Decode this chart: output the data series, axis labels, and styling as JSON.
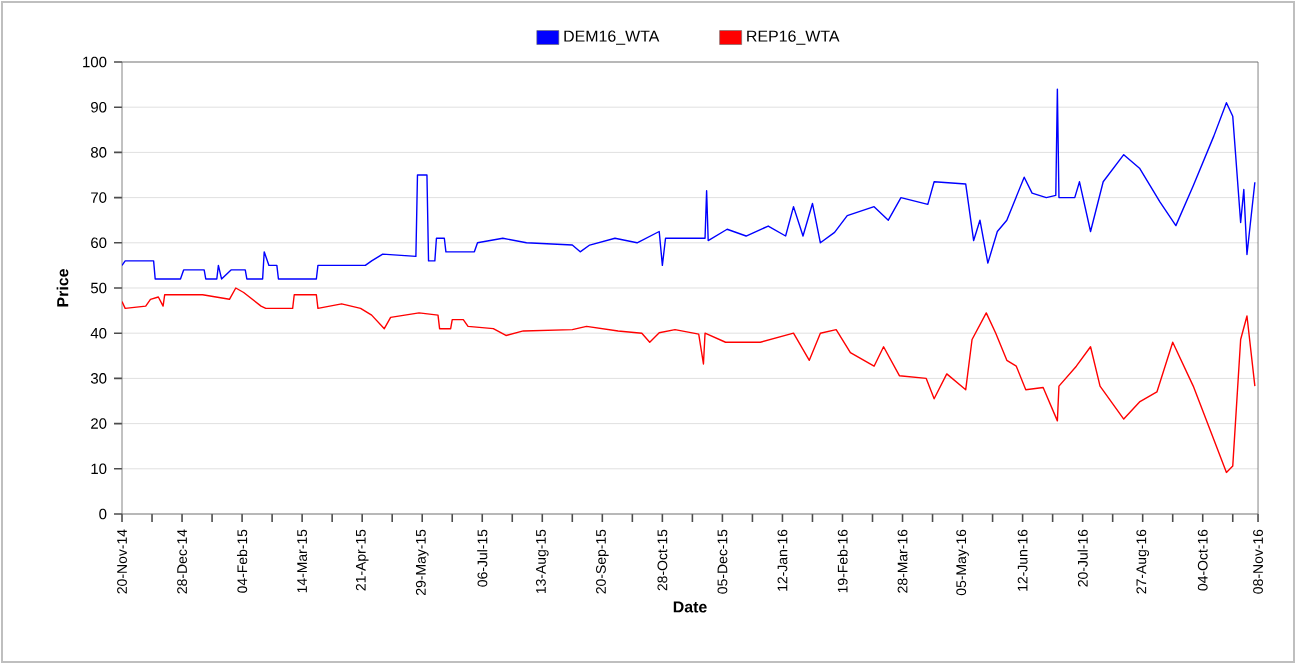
{
  "chart_data": {
    "type": "line",
    "xlabel": "Date",
    "ylabel": "Price",
    "legend": "top",
    "grid": "y",
    "marker": "none",
    "line_style": "solid",
    "xlim": [
      "2014-11-20",
      "2016-11-08"
    ],
    "ylim": [
      0,
      100
    ],
    "yticks": [
      0,
      10,
      20,
      30,
      40,
      50,
      60,
      70,
      80,
      90,
      100
    ],
    "xticks": [
      {
        "value": "2014-11-20",
        "label": "20-Nov-14"
      },
      {
        "value": "2014-12-09",
        "label": null
      },
      {
        "value": "2014-12-28",
        "label": "28-Dec-14"
      },
      {
        "value": "2015-01-16",
        "label": null
      },
      {
        "value": "2015-02-04",
        "label": "04-Feb-15"
      },
      {
        "value": "2015-02-23",
        "label": null
      },
      {
        "value": "2015-03-14",
        "label": "14-Mar-15"
      },
      {
        "value": "2015-04-02",
        "label": null
      },
      {
        "value": "2015-04-21",
        "label": "21-Apr-15"
      },
      {
        "value": "2015-05-10",
        "label": null
      },
      {
        "value": "2015-05-29",
        "label": "29-May-15"
      },
      {
        "value": "2015-06-17",
        "label": null
      },
      {
        "value": "2015-07-06",
        "label": "06-Jul-15"
      },
      {
        "value": "2015-07-25",
        "label": null
      },
      {
        "value": "2015-08-13",
        "label": "13-Aug-15"
      },
      {
        "value": "2015-09-01",
        "label": null
      },
      {
        "value": "2015-09-20",
        "label": "20-Sep-15"
      },
      {
        "value": "2015-10-09",
        "label": null
      },
      {
        "value": "2015-10-28",
        "label": "28-Oct-15"
      },
      {
        "value": "2015-11-16",
        "label": null
      },
      {
        "value": "2015-12-05",
        "label": "05-Dec-15"
      },
      {
        "value": "2015-12-24",
        "label": null
      },
      {
        "value": "2016-01-12",
        "label": "12-Jan-16"
      },
      {
        "value": "2016-01-31",
        "label": null
      },
      {
        "value": "2016-02-19",
        "label": "19-Feb-16"
      },
      {
        "value": "2016-03-09",
        "label": null
      },
      {
        "value": "2016-03-28",
        "label": "28-Mar-16"
      },
      {
        "value": "2016-04-16",
        "label": null
      },
      {
        "value": "2016-05-05",
        "label": "05-May-16"
      },
      {
        "value": "2016-05-24",
        "label": null
      },
      {
        "value": "2016-06-12",
        "label": "12-Jun-16"
      },
      {
        "value": "2016-07-01",
        "label": null
      },
      {
        "value": "2016-07-20",
        "label": "20-Jul-16"
      },
      {
        "value": "2016-08-08",
        "label": null
      },
      {
        "value": "2016-08-27",
        "label": "27-Aug-16"
      },
      {
        "value": "2016-09-15",
        "label": null
      },
      {
        "value": "2016-10-04",
        "label": "04-Oct-16"
      },
      {
        "value": "2016-10-23",
        "label": null
      },
      {
        "value": "2016-11-08",
        "label": "08-Nov-16"
      }
    ],
    "series": [
      {
        "name": "DEM16_WTA",
        "color": "#0000ff",
        "x": [
          "2014-11-20",
          "2014-11-22",
          "2014-12-10",
          "2014-12-11",
          "2014-12-27",
          "2014-12-29",
          "2015-01-11",
          "2015-01-12",
          "2015-01-19",
          "2015-01-20",
          "2015-01-22",
          "2015-01-28",
          "2015-02-06",
          "2015-02-07",
          "2015-02-17",
          "2015-02-18",
          "2015-02-21",
          "2015-02-26",
          "2015-02-27",
          "2015-03-23",
          "2015-03-24",
          "2015-04-23",
          "2015-04-27",
          "2015-05-04",
          "2015-05-25",
          "2015-05-26",
          "2015-06-01",
          "2015-06-02",
          "2015-06-06",
          "2015-06-07",
          "2015-06-12",
          "2015-06-13",
          "2015-07-01",
          "2015-07-03",
          "2015-07-19",
          "2015-08-03",
          "2015-09-01",
          "2015-09-06",
          "2015-09-12",
          "2015-09-28",
          "2015-10-12",
          "2015-10-26",
          "2015-10-28",
          "2015-10-30",
          "2015-11-24",
          "2015-11-25",
          "2015-11-26",
          "2015-12-08",
          "2015-12-20",
          "2016-01-03",
          "2016-01-14",
          "2016-01-19",
          "2016-01-25",
          "2016-01-31",
          "2016-02-05",
          "2016-02-14",
          "2016-02-22",
          "2016-03-10",
          "2016-03-19",
          "2016-03-27",
          "2016-04-13",
          "2016-04-17",
          "2016-05-07",
          "2016-05-12",
          "2016-05-16",
          "2016-05-21",
          "2016-05-27",
          "2016-06-02",
          "2016-06-13",
          "2016-06-18",
          "2016-06-27",
          "2016-07-03",
          "2016-07-04",
          "2016-07-05",
          "2016-07-15",
          "2016-07-18",
          "2016-07-25",
          "2016-08-02",
          "2016-08-15",
          "2016-08-25",
          "2016-09-07",
          "2016-09-17",
          "2016-09-28",
          "2016-10-11",
          "2016-10-19",
          "2016-10-23",
          "2016-10-28",
          "2016-10-30",
          "2016-11-01",
          "2016-11-06"
        ],
        "values": [
          55,
          56,
          56,
          52,
          52,
          54,
          54,
          52,
          52,
          55,
          52,
          54,
          54,
          52,
          52,
          58,
          55,
          55,
          52,
          52,
          55,
          55,
          56,
          57.5,
          57,
          75,
          75,
          56,
          56,
          61,
          61,
          58,
          58,
          60,
          61,
          60,
          59.5,
          58,
          59.5,
          61,
          60,
          62.5,
          55,
          61,
          61,
          71.5,
          60.5,
          63,
          61.5,
          63.7,
          61.5,
          68,
          61.5,
          68.7,
          60,
          62.3,
          66,
          68,
          65,
          70,
          68.5,
          73.5,
          73,
          60.5,
          65,
          55.5,
          62.5,
          65,
          74.5,
          71,
          70,
          70.5,
          94,
          70,
          70,
          73.5,
          62.5,
          73.5,
          79.5,
          76.5,
          69,
          63.8,
          72.6,
          83.6,
          91,
          88,
          64.5,
          71.8,
          57.4,
          73.4
        ]
      },
      {
        "name": "REP16_WTA",
        "color": "#ff0000",
        "x": [
          "2014-11-20",
          "2014-11-22",
          "2014-12-05",
          "2014-12-08",
          "2014-12-13",
          "2014-12-16",
          "2014-12-17",
          "2015-01-10",
          "2015-01-27",
          "2015-01-31",
          "2015-02-05",
          "2015-02-16",
          "2015-02-19",
          "2015-03-08",
          "2015-03-09",
          "2015-03-23",
          "2015-03-24",
          "2015-04-08",
          "2015-04-20",
          "2015-04-27",
          "2015-05-05",
          "2015-05-09",
          "2015-05-27",
          "2015-06-08",
          "2015-06-09",
          "2015-06-16",
          "2015-06-17",
          "2015-06-24",
          "2015-06-27",
          "2015-07-13",
          "2015-07-21",
          "2015-08-01",
          "2015-09-01",
          "2015-09-10",
          "2015-09-30",
          "2015-10-15",
          "2015-10-20",
          "2015-10-26",
          "2015-11-05",
          "2015-11-20",
          "2015-11-23",
          "2015-11-24",
          "2015-12-07",
          "2015-12-29",
          "2016-01-19",
          "2016-01-29",
          "2016-02-05",
          "2016-02-15",
          "2016-02-24",
          "2016-03-10",
          "2016-03-16",
          "2016-03-26",
          "2016-04-12",
          "2016-04-17",
          "2016-04-25",
          "2016-05-07",
          "2016-05-11",
          "2016-05-20",
          "2016-05-26",
          "2016-06-02",
          "2016-06-08",
          "2016-06-14",
          "2016-06-25",
          "2016-07-04",
          "2016-07-05",
          "2016-07-16",
          "2016-07-25",
          "2016-07-31",
          "2016-08-15",
          "2016-08-25",
          "2016-09-05",
          "2016-09-15",
          "2016-09-28",
          "2016-10-11",
          "2016-10-19",
          "2016-10-23",
          "2016-10-28",
          "2016-11-01",
          "2016-11-06"
        ],
        "values": [
          47,
          45.5,
          46,
          47.5,
          48,
          46,
          48.5,
          48.5,
          47.5,
          50,
          49,
          46,
          45.5,
          45.5,
          48.5,
          48.5,
          45.5,
          46.5,
          45.5,
          44,
          41,
          43.5,
          44.5,
          44,
          41,
          41,
          43,
          43,
          41.5,
          41,
          39.5,
          40.5,
          40.8,
          41.5,
          40.5,
          40,
          38,
          40.1,
          40.8,
          39.8,
          33.2,
          40,
          38,
          38,
          40,
          34,
          40,
          40.8,
          35.7,
          32.7,
          37,
          30.6,
          30,
          25.5,
          31,
          27.5,
          38.6,
          44.5,
          40,
          34,
          32.7,
          27.5,
          28,
          20.6,
          28.3,
          32.7,
          37,
          28.3,
          21,
          24.8,
          27,
          38,
          28.3,
          16.5,
          9.2,
          10.6,
          38.6,
          43.8,
          28.3
        ]
      }
    ]
  }
}
